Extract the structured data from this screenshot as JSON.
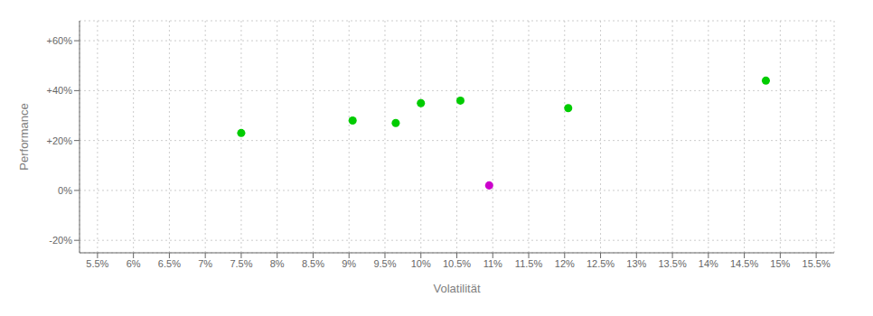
{
  "chart_data": {
    "type": "scatter",
    "xlabel": "Volatilität",
    "ylabel": "Performance",
    "xlim": [
      5.25,
      15.75
    ],
    "ylim": [
      -25,
      68
    ],
    "xticks": [
      {
        "value": 5.5,
        "label": "5.5%"
      },
      {
        "value": 6.0,
        "label": "6%"
      },
      {
        "value": 6.5,
        "label": "6.5%"
      },
      {
        "value": 7.0,
        "label": "7%"
      },
      {
        "value": 7.5,
        "label": "7.5%"
      },
      {
        "value": 8.0,
        "label": "8%"
      },
      {
        "value": 8.5,
        "label": "8.5%"
      },
      {
        "value": 9.0,
        "label": "9%"
      },
      {
        "value": 9.5,
        "label": "9.5%"
      },
      {
        "value": 10.0,
        "label": "10%"
      },
      {
        "value": 10.5,
        "label": "10.5%"
      },
      {
        "value": 11.0,
        "label": "11%"
      },
      {
        "value": 11.5,
        "label": "11.5%"
      },
      {
        "value": 12.0,
        "label": "12%"
      },
      {
        "value": 12.5,
        "label": "12.5%"
      },
      {
        "value": 13.0,
        "label": "13%"
      },
      {
        "value": 13.5,
        "label": "13.5%"
      },
      {
        "value": 14.0,
        "label": "14%"
      },
      {
        "value": 14.5,
        "label": "14.5%"
      },
      {
        "value": 15.0,
        "label": "15%"
      },
      {
        "value": 15.5,
        "label": "15.5%"
      }
    ],
    "yticks": [
      {
        "value": -20,
        "label": "-20%"
      },
      {
        "value": 0,
        "label": "0%"
      },
      {
        "value": 20,
        "label": "+20%"
      },
      {
        "value": 40,
        "label": "+40%"
      },
      {
        "value": 60,
        "label": "+60%"
      }
    ],
    "grid": true,
    "series": [
      {
        "color": "#00cc00",
        "x": [
          7.5,
          9.05,
          9.65,
          10.0,
          10.55,
          12.05,
          14.8
        ],
        "values": [
          23,
          28,
          27,
          35,
          36,
          33,
          44
        ]
      },
      {
        "color": "#cc00cc",
        "x": [
          10.95
        ],
        "values": [
          2
        ]
      }
    ]
  }
}
